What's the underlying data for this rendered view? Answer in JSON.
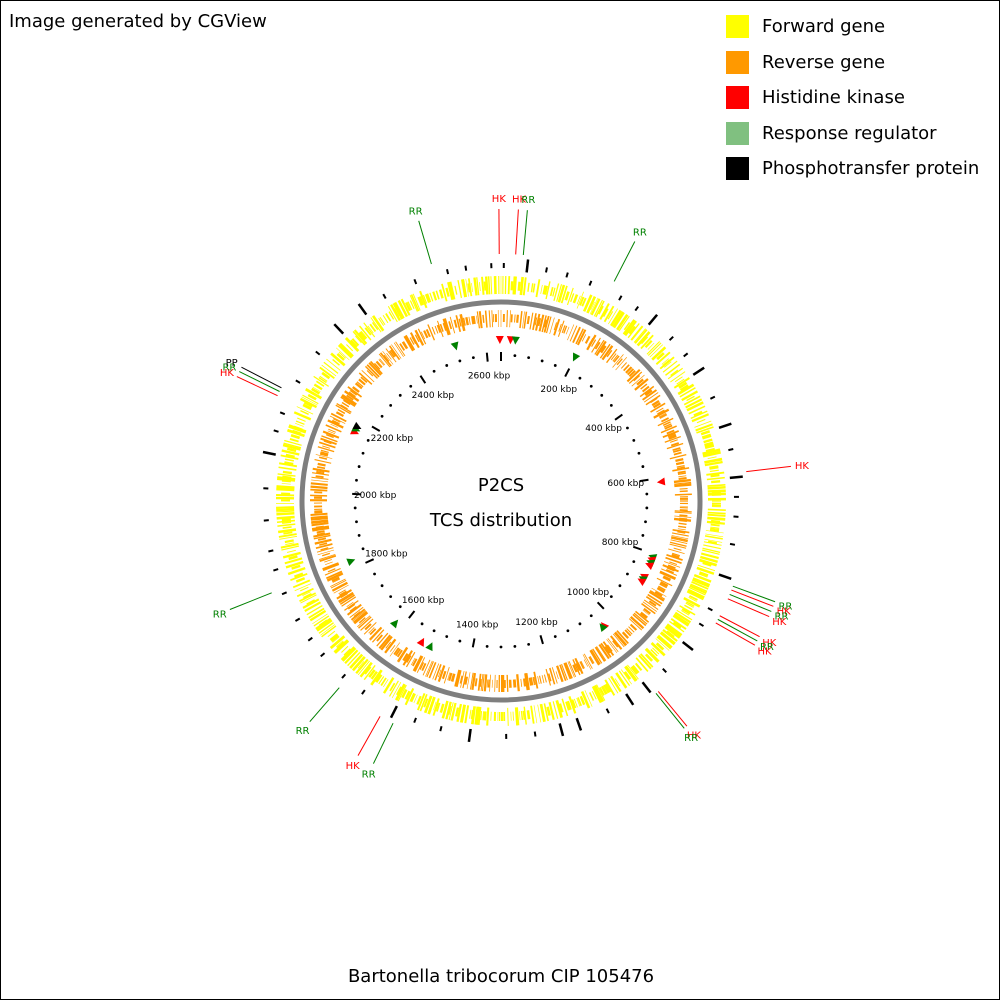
{
  "credit": "Image generated by CGView",
  "legend": [
    {
      "label": "Forward gene",
      "color": "#ffff00"
    },
    {
      "label": "Reverse gene",
      "color": "#ff9900"
    },
    {
      "label": "Histidine kinase",
      "color": "#ff0000"
    },
    {
      "label": "Response regulator",
      "color": "#80c080"
    },
    {
      "label": "Phosphotransfer protein",
      "color": "#000000"
    }
  ],
  "map": {
    "center_title": "P2CS",
    "center_subtitle": "TCS distribution",
    "genome_length_kbp": 2640,
    "scale_labels": [
      "200 kbp",
      "400 kbp",
      "600 kbp",
      "800 kbp",
      "1000 kbp",
      "1200 kbp",
      "1400 kbp",
      "1600 kbp",
      "1800 kbp",
      "2000 kbp",
      "2200 kbp",
      "2400 kbp",
      "2600 kbp"
    ],
    "colors": {
      "hk": "#ff0000",
      "rr": "#008000",
      "pp": "#000000",
      "backbone": "#7f7f7f"
    },
    "features": [
      {
        "label": "RR",
        "kbp": 2520,
        "type": "rr"
      },
      {
        "label": "HK",
        "kbp": 2637,
        "type": "hk"
      },
      {
        "label": "HK",
        "kbp": 25,
        "type": "hk"
      },
      {
        "label": "RR",
        "kbp": 38,
        "type": "rr"
      },
      {
        "label": "RR",
        "kbp": 200,
        "type": "rr"
      },
      {
        "label": "HK",
        "kbp": 610,
        "type": "hk"
      },
      {
        "label": "RR",
        "kbp": 808,
        "type": "rr"
      },
      {
        "label": "HK",
        "kbp": 815,
        "type": "hk"
      },
      {
        "label": "RR",
        "kbp": 823,
        "type": "rr"
      },
      {
        "label": "HK",
        "kbp": 831,
        "type": "hk"
      },
      {
        "label": "HK",
        "kbp": 863,
        "type": "hk"
      },
      {
        "label": "RR",
        "kbp": 870,
        "type": "rr"
      },
      {
        "label": "HK",
        "kbp": 877,
        "type": "hk"
      },
      {
        "label": "HK",
        "kbp": 1030,
        "type": "hk"
      },
      {
        "label": "RR",
        "kbp": 1035,
        "type": "rr"
      },
      {
        "label": "RR",
        "kbp": 1510,
        "type": "rr"
      },
      {
        "label": "HK",
        "kbp": 1535,
        "type": "hk"
      },
      {
        "label": "RR",
        "kbp": 1620,
        "type": "rr"
      },
      {
        "label": "RR",
        "kbp": 1820,
        "type": "rr"
      },
      {
        "label": "HK",
        "kbp": 2165,
        "type": "hk"
      },
      {
        "label": "RR",
        "kbp": 2173,
        "type": "rr"
      },
      {
        "label": "PP",
        "kbp": 2180,
        "type": "pp"
      }
    ]
  },
  "footer": "Bartonella tribocorum CIP 105476"
}
